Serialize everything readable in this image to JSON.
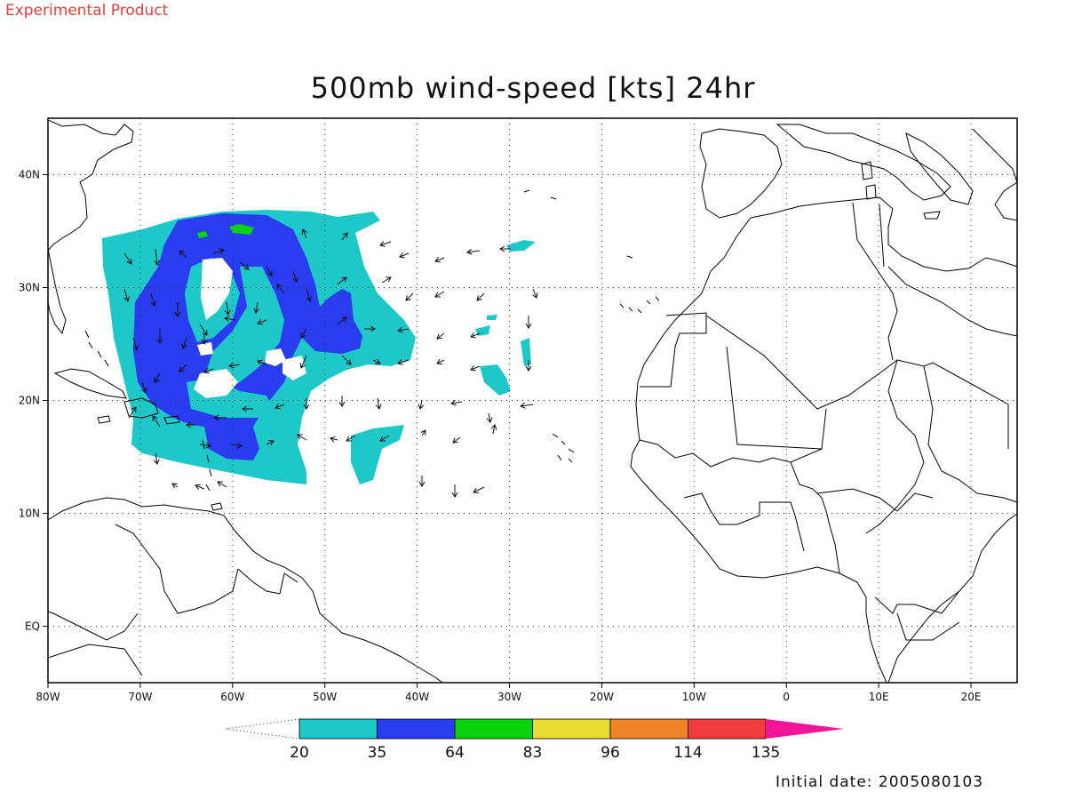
{
  "header": {
    "experimental_label": "Experimental Product",
    "title": "500mb wind-speed [kts] 24hr"
  },
  "footer": {
    "initial_date": "Initial date: 2005080103"
  },
  "map": {
    "lon_range": [
      -80,
      25
    ],
    "lat_range": [
      -5,
      45
    ],
    "lon_ticks": [
      {
        "v": -80,
        "label": "80W"
      },
      {
        "v": -70,
        "label": "70W"
      },
      {
        "v": -60,
        "label": "60W"
      },
      {
        "v": -50,
        "label": "50W"
      },
      {
        "v": -40,
        "label": "40W"
      },
      {
        "v": -30,
        "label": "30W"
      },
      {
        "v": -20,
        "label": "20W"
      },
      {
        "v": -10,
        "label": "10W"
      },
      {
        "v": 0,
        "label": "0"
      },
      {
        "v": 10,
        "label": "10E"
      },
      {
        "v": 20,
        "label": "20E"
      }
    ],
    "lat_ticks": [
      {
        "v": 0,
        "label": "EQ"
      },
      {
        "v": 10,
        "label": "10N"
      },
      {
        "v": 20,
        "label": "20N"
      },
      {
        "v": 30,
        "label": "30N"
      },
      {
        "v": 40,
        "label": "40N"
      }
    ],
    "grid": true
  },
  "colorbar": {
    "levels": [
      "20",
      "35",
      "64",
      "83",
      "96",
      "114",
      "135"
    ],
    "colors": [
      "#1ec8c8",
      "#2a3cf0",
      "#0ad20a",
      "#e6dc32",
      "#f08228",
      "#f03c3c",
      "#f01496"
    ]
  },
  "palette": {
    "low": "#1ec8c8",
    "mid": "#2a3cf0",
    "high": "#0ad20a"
  }
}
